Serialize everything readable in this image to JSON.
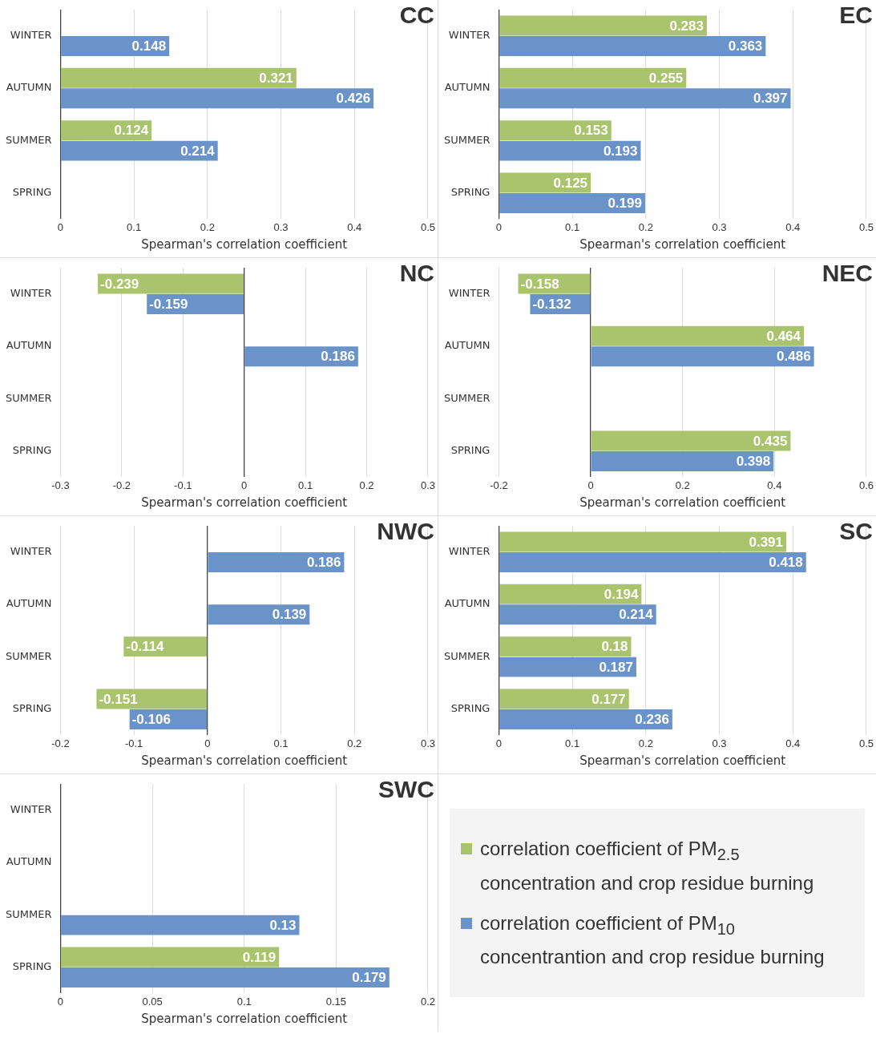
{
  "chart_data": [
    {
      "type": "bar",
      "orientation": "horizontal",
      "title": "CC",
      "xlabel": "Spearman's correlation coefficient",
      "categories": [
        "WINTER",
        "AUTUMN",
        "SUMMER",
        "SPRING"
      ],
      "series": [
        {
          "color": "#a9c46c",
          "values": [
            null,
            0.321,
            0.124,
            null
          ]
        },
        {
          "color": "#6a93c9",
          "values": [
            0.148,
            0.426,
            0.214,
            null
          ]
        }
      ],
      "xlim": [
        0,
        0.5
      ],
      "xticks": [
        0,
        0.1,
        0.2,
        0.3,
        0.4,
        0.5
      ],
      "grid": "x",
      "data_labels": true
    },
    {
      "type": "bar",
      "orientation": "horizontal",
      "title": "EC",
      "xlabel": "Spearman's correlation coefficient",
      "categories": [
        "WINTER",
        "AUTUMN",
        "SUMMER",
        "SPRING"
      ],
      "series": [
        {
          "color": "#a9c46c",
          "values": [
            0.283,
            0.255,
            0.153,
            0.125
          ]
        },
        {
          "color": "#6a93c9",
          "values": [
            0.363,
            0.397,
            0.193,
            0.199
          ]
        }
      ],
      "xlim": [
        0,
        0.5
      ],
      "xticks": [
        0,
        0.1,
        0.2,
        0.3,
        0.4,
        0.5
      ],
      "grid": "x",
      "data_labels": true
    },
    {
      "type": "bar",
      "orientation": "horizontal",
      "title": "NC",
      "xlabel": "Spearman's correlation coefficient",
      "categories": [
        "WINTER",
        "AUTUMN",
        "SUMMER",
        "SPRING"
      ],
      "series": [
        {
          "color": "#a9c46c",
          "values": [
            -0.239,
            null,
            null,
            null
          ]
        },
        {
          "color": "#6a93c9",
          "values": [
            -0.159,
            0.186,
            null,
            null
          ]
        }
      ],
      "xlim": [
        -0.3,
        0.3
      ],
      "xticks": [
        -0.3,
        -0.2,
        -0.1,
        0,
        0.1,
        0.2,
        0.3
      ],
      "grid": "x",
      "data_labels": true
    },
    {
      "type": "bar",
      "orientation": "horizontal",
      "title": "NEC",
      "xlabel": "Spearman's correlation coefficient",
      "categories": [
        "WINTER",
        "AUTUMN",
        "SUMMER",
        "SPRING"
      ],
      "series": [
        {
          "color": "#a9c46c",
          "values": [
            -0.158,
            0.464,
            null,
            0.435
          ]
        },
        {
          "color": "#6a93c9",
          "values": [
            -0.132,
            0.486,
            null,
            0.398
          ]
        }
      ],
      "xlim": [
        -0.2,
        0.6
      ],
      "xticks": [
        -0.2,
        0,
        0.2,
        0.4,
        0.6
      ],
      "grid": "x",
      "data_labels": true
    },
    {
      "type": "bar",
      "orientation": "horizontal",
      "title": "NWC",
      "xlabel": "Spearman's correlation coefficient",
      "categories": [
        "WINTER",
        "AUTUMN",
        "SUMMER",
        "SPRING"
      ],
      "series": [
        {
          "color": "#a9c46c",
          "values": [
            null,
            null,
            -0.114,
            -0.151
          ]
        },
        {
          "color": "#6a93c9",
          "values": [
            0.186,
            0.139,
            null,
            -0.106
          ]
        }
      ],
      "xlim": [
        -0.2,
        0.3
      ],
      "xticks": [
        -0.2,
        -0.1,
        0,
        0.1,
        0.2,
        0.3
      ],
      "grid": "x",
      "data_labels": true
    },
    {
      "type": "bar",
      "orientation": "horizontal",
      "title": "SC",
      "xlabel": "Spearman's correlation coefficient",
      "categories": [
        "WINTER",
        "AUTUMN",
        "SUMMER",
        "SPRING"
      ],
      "series": [
        {
          "color": "#a9c46c",
          "values": [
            0.391,
            0.194,
            0.18,
            0.177
          ]
        },
        {
          "color": "#6a93c9",
          "values": [
            0.418,
            0.214,
            0.187,
            0.236
          ]
        }
      ],
      "xlim": [
        0,
        0.5
      ],
      "xticks": [
        0,
        0.1,
        0.2,
        0.3,
        0.4,
        0.5
      ],
      "grid": "x",
      "data_labels": true
    },
    {
      "type": "bar",
      "orientation": "horizontal",
      "title": "SWC",
      "xlabel": "Spearman's correlation coefficient",
      "categories": [
        "WINTER",
        "AUTUMN",
        "SUMMER",
        "SPRING"
      ],
      "series": [
        {
          "name": "correlation coefficient of PM$_{2.5}$ concentration and crop residue burning",
          "color": "#a9c46c",
          "values": [
            null,
            null,
            null,
            0.119
          ]
        },
        {
          "name": "correlation coefficient of PM$_{10}$ concentrantion and crop residue burning",
          "color": "#6a93c9",
          "values": [
            null,
            null,
            0.13,
            0.179
          ]
        }
      ],
      "xlim": [
        0,
        0.2
      ],
      "xticks": [
        0,
        0.05,
        0.1,
        0.15,
        0.2
      ],
      "grid": "x",
      "data_labels": true,
      "legend": "right"
    }
  ]
}
